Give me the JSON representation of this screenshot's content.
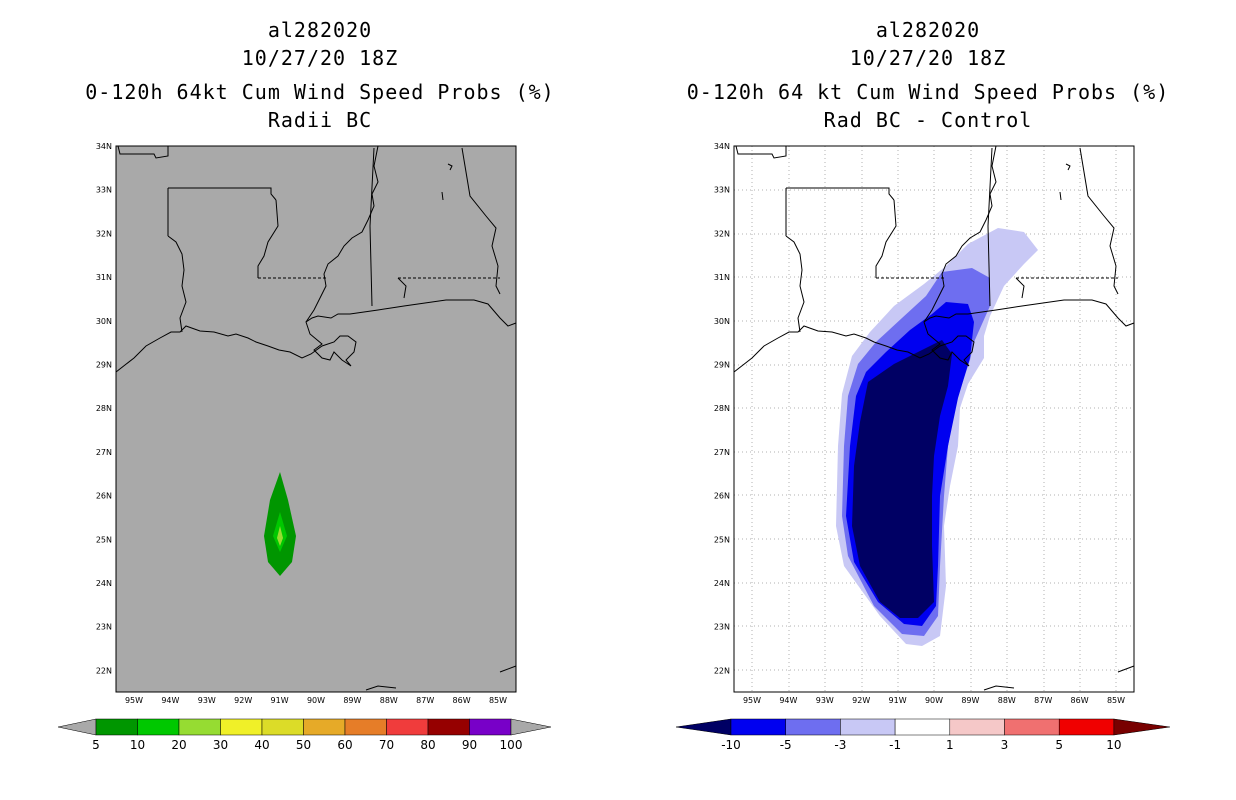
{
  "left": {
    "storm": "al282020",
    "time": "10/27/20 18Z",
    "title": "0-120h 64kt Cum Wind Speed Probs (%)",
    "subtitle": "Radii BC",
    "colorbar": {
      "labels": [
        "5",
        "10",
        "20",
        "30",
        "40",
        "50",
        "60",
        "70",
        "80",
        "90",
        "100"
      ],
      "colors": [
        "#009600",
        "#00c800",
        "#96dc32",
        "#f0f028",
        "#dcdc28",
        "#e6aa28",
        "#e67d28",
        "#f03c3c",
        "#960000",
        "#7800c8"
      ]
    },
    "probability_core": "10"
  },
  "right": {
    "storm": "al282020",
    "time": "10/27/20 18Z",
    "title": "0-120h 64 kt Cum Wind Speed Probs (%)",
    "subtitle": "Rad BC - Control",
    "colorbar": {
      "labels": [
        "-10",
        "-5",
        "-3",
        "-1",
        "1",
        "3",
        "5",
        "10"
      ],
      "colors": [
        "#000064",
        "#0000f0",
        "#6e6ef0",
        "#c8c8f5",
        "#ffffff",
        "#f5c8c8",
        "#f07070",
        "#f00000",
        "#780000"
      ]
    }
  },
  "axes": {
    "lat_labels": [
      "34N",
      "33N",
      "32N",
      "31N",
      "30N",
      "29N",
      "28N",
      "27N",
      "26N",
      "25N",
      "24N",
      "23N",
      "22N"
    ],
    "lon_labels": [
      "95W",
      "94W",
      "93W",
      "92W",
      "91W",
      "90W",
      "89W",
      "88W",
      "87W",
      "86W",
      "85W"
    ]
  },
  "colors": {
    "land_sea_gray": "#a9a9a9",
    "neg_min": "#000064"
  }
}
